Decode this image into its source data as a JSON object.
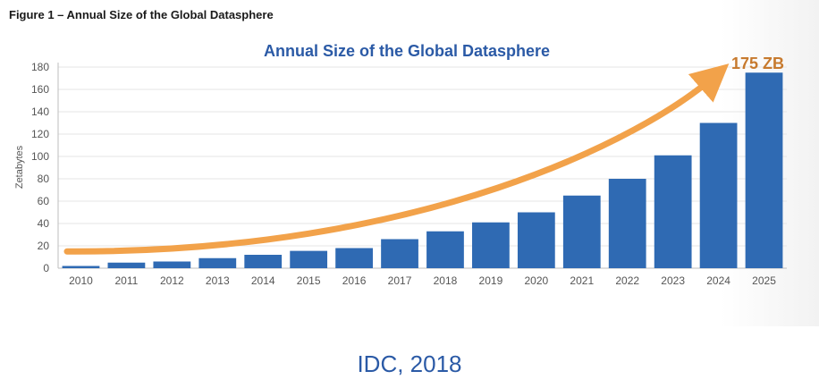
{
  "figure_caption": "Figure 1 – Annual Size of the Global Datasphere",
  "source_text": "IDC, 2018",
  "colors": {
    "bar": "#2f6ab3",
    "arrow": "#f2a24a",
    "title": "#2b5aa6",
    "callout": "#c77a2e",
    "grid": "#e6e6e6"
  },
  "chart_data": {
    "type": "bar",
    "title": "Annual Size of the Global Datasphere",
    "xlabel": "",
    "ylabel": "Zetabytes",
    "categories": [
      "2010",
      "2011",
      "2012",
      "2013",
      "2014",
      "2015",
      "2016",
      "2017",
      "2018",
      "2019",
      "2020",
      "2021",
      "2022",
      "2023",
      "2024",
      "2025"
    ],
    "values": [
      2,
      5,
      6,
      9,
      12,
      15.5,
      18,
      26,
      33,
      41,
      50,
      65,
      80,
      101,
      130,
      175
    ],
    "ylim": [
      0,
      180
    ],
    "yticks": [
      0,
      20,
      40,
      60,
      80,
      100,
      120,
      140,
      160,
      180
    ],
    "grid": true,
    "legend": "none",
    "annotation": {
      "text": "175 ZB",
      "type": "growth-arrow"
    }
  }
}
